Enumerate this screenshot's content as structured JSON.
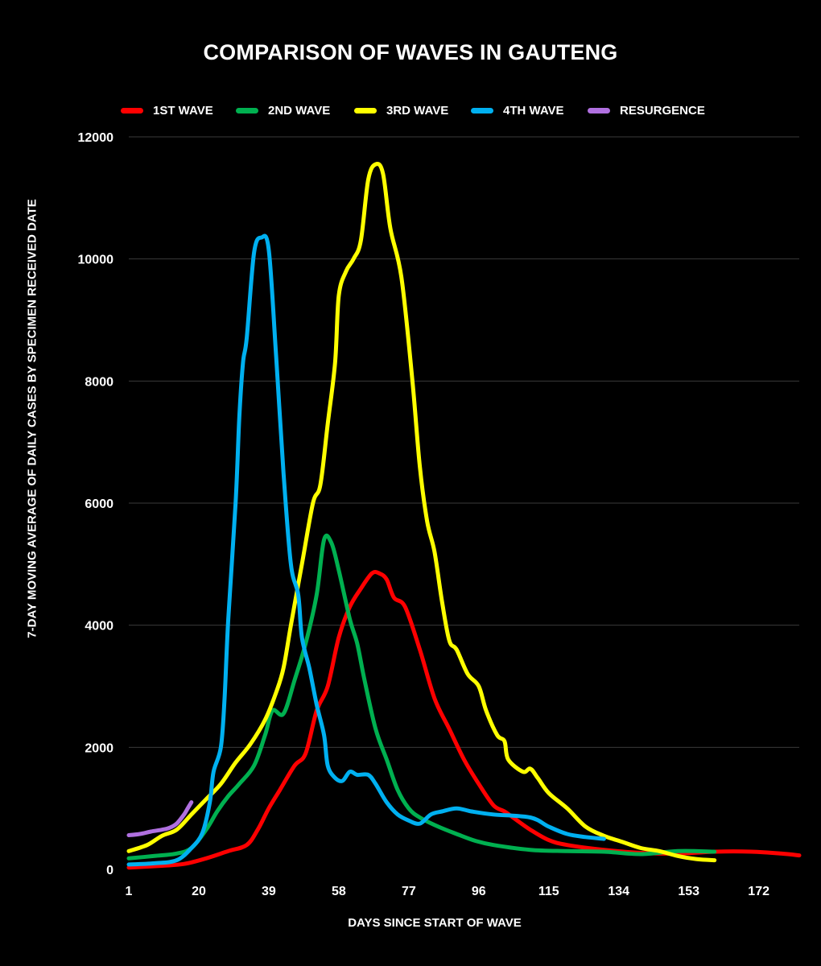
{
  "chart_data": {
    "type": "line",
    "title": "COMPARISON OF WAVES IN GAUTENG",
    "xlabel": "DAYS SINCE START OF WAVE",
    "ylabel": "7-DAY MOVING AVERAGE OF DAILY CASES BY SPECIMEN RECEIVED DATE",
    "x_ticks": [
      1,
      20,
      39,
      58,
      77,
      96,
      115,
      134,
      153,
      172
    ],
    "y_ticks": [
      0,
      2000,
      4000,
      6000,
      8000,
      10000,
      12000
    ],
    "xlim": [
      1,
      183
    ],
    "ylim": [
      0,
      12000
    ],
    "grid": "horizontal",
    "legend_position": "top",
    "series": [
      {
        "name": "1ST WAVE",
        "color": "#ff0000",
        "points": [
          [
            1,
            30
          ],
          [
            10,
            60
          ],
          [
            16,
            90
          ],
          [
            22,
            180
          ],
          [
            28,
            300
          ],
          [
            33,
            400
          ],
          [
            36,
            650
          ],
          [
            39,
            1000
          ],
          [
            42,
            1300
          ],
          [
            46,
            1700
          ],
          [
            49,
            1900
          ],
          [
            52,
            2600
          ],
          [
            55,
            3000
          ],
          [
            58,
            3800
          ],
          [
            61,
            4300
          ],
          [
            64,
            4600
          ],
          [
            67,
            4850
          ],
          [
            69,
            4850
          ],
          [
            71,
            4750
          ],
          [
            73,
            4450
          ],
          [
            76,
            4300
          ],
          [
            80,
            3600
          ],
          [
            84,
            2800
          ],
          [
            88,
            2300
          ],
          [
            92,
            1800
          ],
          [
            96,
            1400
          ],
          [
            100,
            1050
          ],
          [
            103,
            950
          ],
          [
            106,
            820
          ],
          [
            110,
            650
          ],
          [
            115,
            480
          ],
          [
            120,
            400
          ],
          [
            130,
            320
          ],
          [
            140,
            270
          ],
          [
            150,
            260
          ],
          [
            160,
            290
          ],
          [
            170,
            290
          ],
          [
            178,
            260
          ],
          [
            183,
            230
          ]
        ]
      },
      {
        "name": "2ND WAVE",
        "color": "#00b050",
        "points": [
          [
            1,
            180
          ],
          [
            8,
            220
          ],
          [
            14,
            260
          ],
          [
            18,
            350
          ],
          [
            22,
            650
          ],
          [
            25,
            950
          ],
          [
            28,
            1200
          ],
          [
            31,
            1400
          ],
          [
            35,
            1700
          ],
          [
            38,
            2200
          ],
          [
            40,
            2600
          ],
          [
            43,
            2550
          ],
          [
            46,
            3100
          ],
          [
            49,
            3700
          ],
          [
            52,
            4500
          ],
          [
            54,
            5400
          ],
          [
            56,
            5350
          ],
          [
            58,
            4900
          ],
          [
            61,
            4100
          ],
          [
            63,
            3700
          ],
          [
            65,
            3100
          ],
          [
            68,
            2300
          ],
          [
            71,
            1800
          ],
          [
            74,
            1300
          ],
          [
            77,
            1000
          ],
          [
            80,
            850
          ],
          [
            85,
            700
          ],
          [
            90,
            580
          ],
          [
            95,
            470
          ],
          [
            100,
            400
          ],
          [
            110,
            320
          ],
          [
            120,
            300
          ],
          [
            130,
            290
          ],
          [
            140,
            250
          ],
          [
            150,
            300
          ],
          [
            160,
            290
          ]
        ]
      },
      {
        "name": "3RD WAVE",
        "color": "#ffff00",
        "points": [
          [
            1,
            300
          ],
          [
            6,
            400
          ],
          [
            10,
            550
          ],
          [
            14,
            650
          ],
          [
            18,
            900
          ],
          [
            22,
            1150
          ],
          [
            26,
            1400
          ],
          [
            30,
            1750
          ],
          [
            34,
            2050
          ],
          [
            38,
            2450
          ],
          [
            41,
            2900
          ],
          [
            43,
            3300
          ],
          [
            45,
            4000
          ],
          [
            48,
            5000
          ],
          [
            51,
            6000
          ],
          [
            53,
            6300
          ],
          [
            55,
            7300
          ],
          [
            57,
            8300
          ],
          [
            58,
            9400
          ],
          [
            60,
            9800
          ],
          [
            62,
            10000
          ],
          [
            64,
            10300
          ],
          [
            66,
            11300
          ],
          [
            68,
            11550
          ],
          [
            70,
            11400
          ],
          [
            72,
            10500
          ],
          [
            75,
            9700
          ],
          [
            78,
            8000
          ],
          [
            80,
            6600
          ],
          [
            82,
            5700
          ],
          [
            84,
            5200
          ],
          [
            86,
            4400
          ],
          [
            88,
            3750
          ],
          [
            90,
            3600
          ],
          [
            93,
            3200
          ],
          [
            96,
            3000
          ],
          [
            98,
            2600
          ],
          [
            101,
            2200
          ],
          [
            103,
            2100
          ],
          [
            104,
            1800
          ],
          [
            108,
            1600
          ],
          [
            110,
            1650
          ],
          [
            112,
            1500
          ],
          [
            115,
            1250
          ],
          [
            120,
            1000
          ],
          [
            125,
            700
          ],
          [
            130,
            550
          ],
          [
            135,
            450
          ],
          [
            140,
            350
          ],
          [
            145,
            300
          ],
          [
            150,
            220
          ],
          [
            155,
            170
          ],
          [
            160,
            150
          ]
        ]
      },
      {
        "name": "4TH WAVE",
        "color": "#00b0f0",
        "points": [
          [
            1,
            80
          ],
          [
            8,
            100
          ],
          [
            14,
            150
          ],
          [
            18,
            350
          ],
          [
            21,
            600
          ],
          [
            23,
            1100
          ],
          [
            24,
            1600
          ],
          [
            26,
            2000
          ],
          [
            27,
            2800
          ],
          [
            28,
            4100
          ],
          [
            30,
            6000
          ],
          [
            31,
            7400
          ],
          [
            32,
            8300
          ],
          [
            33,
            8700
          ],
          [
            35,
            10100
          ],
          [
            37,
            10350
          ],
          [
            39,
            10150
          ],
          [
            41,
            8400
          ],
          [
            43,
            6500
          ],
          [
            45,
            5000
          ],
          [
            47,
            4500
          ],
          [
            48,
            3800
          ],
          [
            50,
            3300
          ],
          [
            52,
            2700
          ],
          [
            54,
            2200
          ],
          [
            55,
            1700
          ],
          [
            57,
            1500
          ],
          [
            59,
            1450
          ],
          [
            61,
            1600
          ],
          [
            63,
            1550
          ],
          [
            66,
            1550
          ],
          [
            68,
            1400
          ],
          [
            71,
            1100
          ],
          [
            74,
            900
          ],
          [
            77,
            800
          ],
          [
            80,
            750
          ],
          [
            83,
            900
          ],
          [
            86,
            950
          ],
          [
            90,
            1000
          ],
          [
            94,
            950
          ],
          [
            100,
            900
          ],
          [
            110,
            850
          ],
          [
            115,
            700
          ],
          [
            120,
            580
          ],
          [
            125,
            530
          ],
          [
            130,
            500
          ]
        ]
      },
      {
        "name": "RESURGENCE",
        "color": "#b070e0",
        "points": [
          [
            1,
            560
          ],
          [
            4,
            580
          ],
          [
            7,
            620
          ],
          [
            10,
            650
          ],
          [
            12,
            680
          ],
          [
            14,
            750
          ],
          [
            16,
            900
          ],
          [
            17,
            1000
          ],
          [
            18,
            1100
          ]
        ]
      }
    ]
  }
}
